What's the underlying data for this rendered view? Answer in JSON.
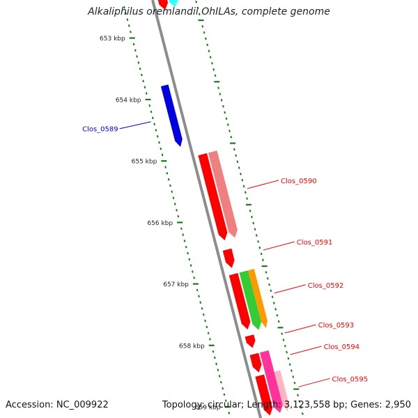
{
  "title": "Alkaliphilus oremlandii OhILAs, complete genome",
  "footer": {
    "accession": "Accession: NC_009922",
    "summary": "Topology: circular; Length: 3,123,558 bp; Genes: 2,950"
  },
  "axis": {
    "start_bp": 652500,
    "end_bp": 659300,
    "major_ticks": [
      {
        "bp": 653000,
        "label": "653 kbp"
      },
      {
        "bp": 654000,
        "label": "654 kbp"
      },
      {
        "bp": 655000,
        "label": "655 kbp"
      },
      {
        "bp": 656000,
        "label": "656 kbp"
      },
      {
        "bp": 657000,
        "label": "657 kbp"
      },
      {
        "bp": 658000,
        "label": "658 kbp"
      },
      {
        "bp": 659000,
        "label": "659 kbp"
      }
    ]
  },
  "colors": {
    "backbone": "#8c8c8c",
    "tick": "#1a7a1a",
    "cds": "#ff0000",
    "cds_light": "#f08080",
    "minus_strand": "#0000e0",
    "green": "#33cc33",
    "orange": "#ff9900",
    "magenta": "#ff3399",
    "pink": "#ffb6c1",
    "cyan": "#33ffff"
  },
  "features": [
    {
      "name": "Clos_0589",
      "start": 653850,
      "end": 654850,
      "track": -1,
      "color": "#0000e0",
      "label_side": "left"
    },
    {
      "name": "Clos_0590",
      "start": 655050,
      "end": 656450,
      "track": 1,
      "color": "#ff0000",
      "label_side": "right"
    },
    {
      "name": "Clos_0591",
      "start": 656600,
      "end": 656900,
      "track": 1,
      "color": "#ff0000",
      "label_side": "right"
    },
    {
      "name": "Clos_0592",
      "start": 657000,
      "end": 657900,
      "track": 1,
      "color": "#ff0000",
      "label_side": "right"
    },
    {
      "name": "Clos_0593",
      "start": 658000,
      "end": 658200,
      "track": 1,
      "color": "#ff0000",
      "label_side": "right"
    },
    {
      "name": "Clos_0594",
      "start": 658300,
      "end": 658600,
      "track": 1,
      "color": "#ff0000",
      "label_side": "right"
    },
    {
      "name": "Clos_0595",
      "start": 658650,
      "end": 659300,
      "track": 1,
      "color": "#ff0000",
      "label_side": "right"
    }
  ],
  "unlabeled_features": [
    {
      "start": 652500,
      "end": 652700,
      "track": 1,
      "color": "#ff0000"
    },
    {
      "start": 652500,
      "end": 652700,
      "track": 2,
      "color": "#33ffff"
    },
    {
      "start": 655050,
      "end": 656450,
      "track": 2,
      "color": "#f08080"
    },
    {
      "start": 657000,
      "end": 657950,
      "track": 2,
      "color": "#33cc33"
    },
    {
      "start": 657000,
      "end": 657950,
      "track": 3,
      "color": "#ff9900"
    },
    {
      "start": 658300,
      "end": 659300,
      "track": 2,
      "color": "#ff3399"
    },
    {
      "start": 658650,
      "end": 659300,
      "track": 3,
      "color": "#ffb6c1"
    }
  ]
}
